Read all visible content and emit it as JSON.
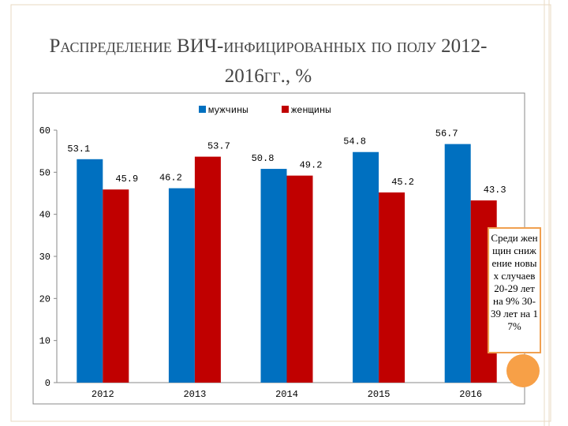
{
  "chart_data": {
    "type": "bar",
    "title": "Распределение ВИЧ-инфицированных по полу 2012-2016гг., %",
    "categories": [
      "2012",
      "2013",
      "2014",
      "2015",
      "2016"
    ],
    "series": [
      {
        "name": "мужчины",
        "color": "#0070c0",
        "values": [
          53.1,
          46.2,
          50.8,
          54.8,
          56.7
        ]
      },
      {
        "name": "женщины",
        "color": "#c00000",
        "values": [
          45.9,
          53.7,
          49.2,
          45.2,
          43.3
        ]
      }
    ],
    "ylim": [
      0,
      60
    ],
    "yticks": [
      0,
      10,
      20,
      30,
      40,
      50,
      60
    ],
    "grid": false,
    "legend": "top",
    "annotation": "Среди женщин снижение новых случаев 20-29 лет на 9% 30-39 лет на 17%"
  }
}
